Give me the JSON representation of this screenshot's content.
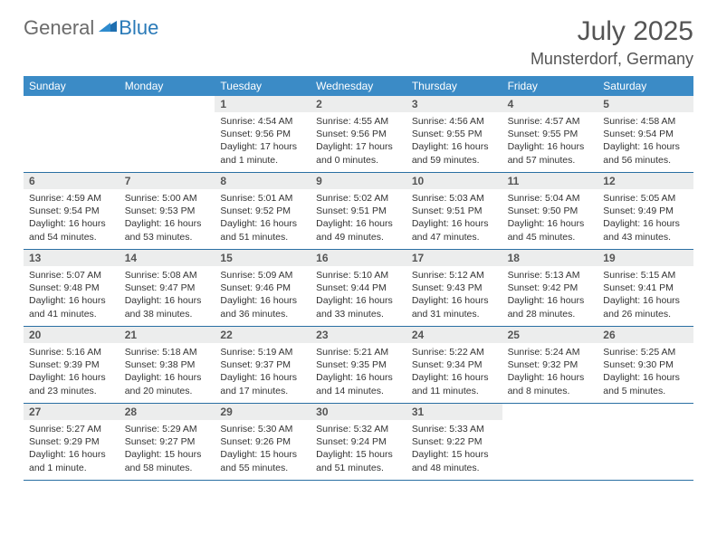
{
  "logo": {
    "left": "General",
    "right": "Blue"
  },
  "title": "July 2025",
  "location": "Munsterdorf, Germany",
  "colors": {
    "header_bg": "#3b8bc6",
    "header_text": "#ffffff",
    "daynum_bg": "#eceded",
    "border": "#2a6fa3",
    "text": "#333333",
    "title_text": "#545454"
  },
  "typography": {
    "title_fontsize": 30,
    "location_fontsize": 18,
    "dow_fontsize": 12,
    "daynum_fontsize": 12,
    "body_fontsize": 10.5
  },
  "days_of_week": [
    "Sunday",
    "Monday",
    "Tuesday",
    "Wednesday",
    "Thursday",
    "Friday",
    "Saturday"
  ],
  "weeks": [
    [
      null,
      null,
      {
        "n": "1",
        "sr": "Sunrise: 4:54 AM",
        "ss": "Sunset: 9:56 PM",
        "dl": "Daylight: 17 hours and 1 minute."
      },
      {
        "n": "2",
        "sr": "Sunrise: 4:55 AM",
        "ss": "Sunset: 9:56 PM",
        "dl": "Daylight: 17 hours and 0 minutes."
      },
      {
        "n": "3",
        "sr": "Sunrise: 4:56 AM",
        "ss": "Sunset: 9:55 PM",
        "dl": "Daylight: 16 hours and 59 minutes."
      },
      {
        "n": "4",
        "sr": "Sunrise: 4:57 AM",
        "ss": "Sunset: 9:55 PM",
        "dl": "Daylight: 16 hours and 57 minutes."
      },
      {
        "n": "5",
        "sr": "Sunrise: 4:58 AM",
        "ss": "Sunset: 9:54 PM",
        "dl": "Daylight: 16 hours and 56 minutes."
      }
    ],
    [
      {
        "n": "6",
        "sr": "Sunrise: 4:59 AM",
        "ss": "Sunset: 9:54 PM",
        "dl": "Daylight: 16 hours and 54 minutes."
      },
      {
        "n": "7",
        "sr": "Sunrise: 5:00 AM",
        "ss": "Sunset: 9:53 PM",
        "dl": "Daylight: 16 hours and 53 minutes."
      },
      {
        "n": "8",
        "sr": "Sunrise: 5:01 AM",
        "ss": "Sunset: 9:52 PM",
        "dl": "Daylight: 16 hours and 51 minutes."
      },
      {
        "n": "9",
        "sr": "Sunrise: 5:02 AM",
        "ss": "Sunset: 9:51 PM",
        "dl": "Daylight: 16 hours and 49 minutes."
      },
      {
        "n": "10",
        "sr": "Sunrise: 5:03 AM",
        "ss": "Sunset: 9:51 PM",
        "dl": "Daylight: 16 hours and 47 minutes."
      },
      {
        "n": "11",
        "sr": "Sunrise: 5:04 AM",
        "ss": "Sunset: 9:50 PM",
        "dl": "Daylight: 16 hours and 45 minutes."
      },
      {
        "n": "12",
        "sr": "Sunrise: 5:05 AM",
        "ss": "Sunset: 9:49 PM",
        "dl": "Daylight: 16 hours and 43 minutes."
      }
    ],
    [
      {
        "n": "13",
        "sr": "Sunrise: 5:07 AM",
        "ss": "Sunset: 9:48 PM",
        "dl": "Daylight: 16 hours and 41 minutes."
      },
      {
        "n": "14",
        "sr": "Sunrise: 5:08 AM",
        "ss": "Sunset: 9:47 PM",
        "dl": "Daylight: 16 hours and 38 minutes."
      },
      {
        "n": "15",
        "sr": "Sunrise: 5:09 AM",
        "ss": "Sunset: 9:46 PM",
        "dl": "Daylight: 16 hours and 36 minutes."
      },
      {
        "n": "16",
        "sr": "Sunrise: 5:10 AM",
        "ss": "Sunset: 9:44 PM",
        "dl": "Daylight: 16 hours and 33 minutes."
      },
      {
        "n": "17",
        "sr": "Sunrise: 5:12 AM",
        "ss": "Sunset: 9:43 PM",
        "dl": "Daylight: 16 hours and 31 minutes."
      },
      {
        "n": "18",
        "sr": "Sunrise: 5:13 AM",
        "ss": "Sunset: 9:42 PM",
        "dl": "Daylight: 16 hours and 28 minutes."
      },
      {
        "n": "19",
        "sr": "Sunrise: 5:15 AM",
        "ss": "Sunset: 9:41 PM",
        "dl": "Daylight: 16 hours and 26 minutes."
      }
    ],
    [
      {
        "n": "20",
        "sr": "Sunrise: 5:16 AM",
        "ss": "Sunset: 9:39 PM",
        "dl": "Daylight: 16 hours and 23 minutes."
      },
      {
        "n": "21",
        "sr": "Sunrise: 5:18 AM",
        "ss": "Sunset: 9:38 PM",
        "dl": "Daylight: 16 hours and 20 minutes."
      },
      {
        "n": "22",
        "sr": "Sunrise: 5:19 AM",
        "ss": "Sunset: 9:37 PM",
        "dl": "Daylight: 16 hours and 17 minutes."
      },
      {
        "n": "23",
        "sr": "Sunrise: 5:21 AM",
        "ss": "Sunset: 9:35 PM",
        "dl": "Daylight: 16 hours and 14 minutes."
      },
      {
        "n": "24",
        "sr": "Sunrise: 5:22 AM",
        "ss": "Sunset: 9:34 PM",
        "dl": "Daylight: 16 hours and 11 minutes."
      },
      {
        "n": "25",
        "sr": "Sunrise: 5:24 AM",
        "ss": "Sunset: 9:32 PM",
        "dl": "Daylight: 16 hours and 8 minutes."
      },
      {
        "n": "26",
        "sr": "Sunrise: 5:25 AM",
        "ss": "Sunset: 9:30 PM",
        "dl": "Daylight: 16 hours and 5 minutes."
      }
    ],
    [
      {
        "n": "27",
        "sr": "Sunrise: 5:27 AM",
        "ss": "Sunset: 9:29 PM",
        "dl": "Daylight: 16 hours and 1 minute."
      },
      {
        "n": "28",
        "sr": "Sunrise: 5:29 AM",
        "ss": "Sunset: 9:27 PM",
        "dl": "Daylight: 15 hours and 58 minutes."
      },
      {
        "n": "29",
        "sr": "Sunrise: 5:30 AM",
        "ss": "Sunset: 9:26 PM",
        "dl": "Daylight: 15 hours and 55 minutes."
      },
      {
        "n": "30",
        "sr": "Sunrise: 5:32 AM",
        "ss": "Sunset: 9:24 PM",
        "dl": "Daylight: 15 hours and 51 minutes."
      },
      {
        "n": "31",
        "sr": "Sunrise: 5:33 AM",
        "ss": "Sunset: 9:22 PM",
        "dl": "Daylight: 15 hours and 48 minutes."
      },
      null,
      null
    ]
  ]
}
